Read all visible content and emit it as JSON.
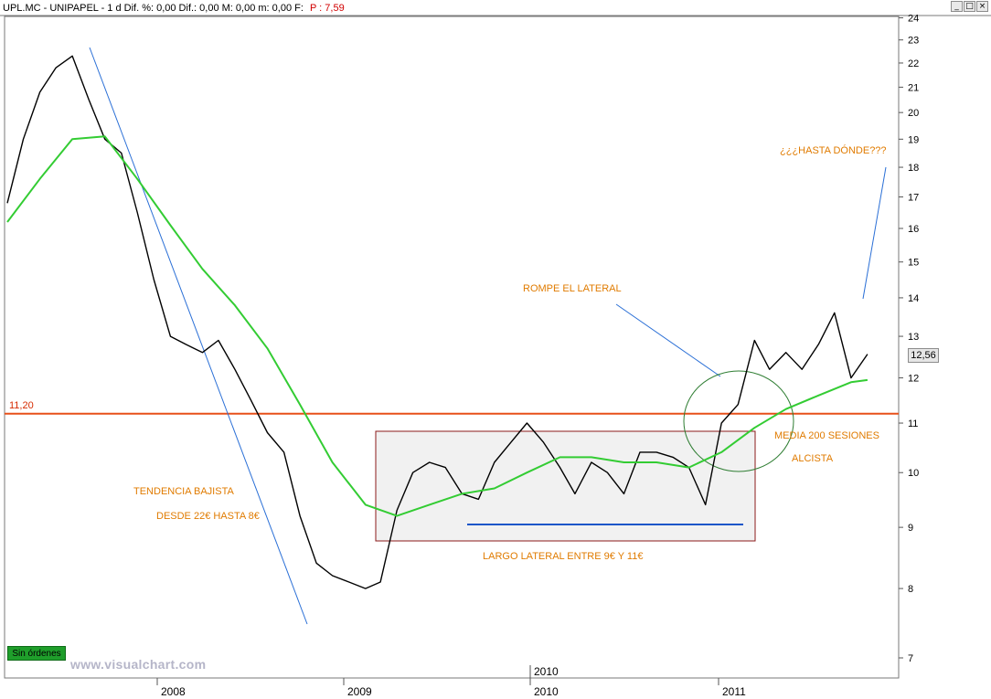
{
  "header": {
    "title": "UPL.MC - UNIPAPEL - 1 d Dif. %: 0,00 Dif.: 0,00 M: 0,00 m: 0,00 F:",
    "p_value": "P : 7,59"
  },
  "window_buttons": [
    "_",
    "□",
    "×"
  ],
  "status_box": "Sin órdenes",
  "watermark": "www.visualchart.com",
  "current_price": "12,56",
  "level_label": "11,20",
  "annotations": {
    "trend_line1": "TENDENCIA BAJISTA",
    "trend_line2": "DESDE 22€ HASTA 8€",
    "lateral": "LARGO LATERAL ENTRE 9€ Y 11€",
    "breakout": "ROMPE EL LATERAL",
    "ma_line1": "MEDIA 200 SESIONES",
    "ma_line2": "ALCISTA",
    "question": "¿¿¿HASTA DÓNDE???"
  },
  "colors": {
    "price": "#000000",
    "ma200": "#33cc33",
    "level": "#e8501a",
    "support": "#1a56c8",
    "trend": "#2a6fd6",
    "annotation": "#e07b00",
    "box": "#8b1a1a"
  },
  "chart_data": {
    "type": "line",
    "title": "",
    "scale": "log",
    "ylim": [
      7,
      24
    ],
    "y_ticks": [
      7,
      8,
      9,
      10,
      11,
      12,
      13,
      14,
      15,
      16,
      17,
      18,
      19,
      20,
      21,
      22,
      23,
      24
    ],
    "x_labels": [
      "2008",
      "2009",
      "2010",
      "2011"
    ],
    "x_label_extra": "2010",
    "horizontal_level": 11.2,
    "support_level": 9.05,
    "series": [
      {
        "style": "price",
        "x": [
          "2007-04",
          "2007-05",
          "2007-06",
          "2007-07",
          "2007-08",
          "2007-09",
          "2007-10",
          "2007-11",
          "2007-12",
          "2008-01",
          "2008-02",
          "2008-03",
          "2008-04",
          "2008-05",
          "2008-06",
          "2008-07",
          "2008-08",
          "2008-09",
          "2008-10",
          "2008-11",
          "2008-12",
          "2009-01",
          "2009-02",
          "2009-03",
          "2009-04",
          "2009-05",
          "2009-06",
          "2009-07",
          "2009-08",
          "2009-09",
          "2009-10",
          "2009-11",
          "2009-12",
          "2010-01",
          "2010-02",
          "2010-03",
          "2010-04",
          "2010-05",
          "2010-06",
          "2010-07",
          "2010-08",
          "2010-09",
          "2010-10",
          "2010-11",
          "2010-12",
          "2011-01",
          "2011-02",
          "2011-03",
          "2011-04",
          "2011-05",
          "2011-06",
          "2011-07",
          "2011-08",
          "2011-09"
        ],
        "values": [
          16.8,
          19.0,
          20.8,
          21.8,
          22.3,
          20.5,
          19.0,
          18.5,
          16.5,
          14.5,
          13.0,
          12.8,
          12.6,
          12.9,
          12.2,
          11.5,
          10.8,
          10.4,
          9.2,
          8.4,
          8.2,
          8.1,
          8.0,
          8.1,
          9.3,
          10.0,
          10.2,
          10.1,
          9.6,
          9.5,
          10.2,
          10.6,
          11.0,
          10.6,
          10.1,
          9.6,
          10.2,
          10.0,
          9.6,
          10.4,
          10.4,
          10.3,
          10.1,
          9.4,
          11.0,
          11.4,
          12.9,
          12.2,
          12.6,
          12.2,
          12.8,
          13.6,
          12.0,
          12.56
        ]
      },
      {
        "style": "ma200",
        "x": [
          "2007-04",
          "2007-06",
          "2007-08",
          "2007-10",
          "2007-12",
          "2008-02",
          "2008-04",
          "2008-06",
          "2008-08",
          "2008-10",
          "2008-12",
          "2009-02",
          "2009-04",
          "2009-06",
          "2009-08",
          "2009-10",
          "2009-12",
          "2010-02",
          "2010-04",
          "2010-06",
          "2010-08",
          "2010-10",
          "2010-12",
          "2011-02",
          "2011-04",
          "2011-06",
          "2011-08",
          "2011-09"
        ],
        "values": [
          16.2,
          17.6,
          19.0,
          19.1,
          17.6,
          16.1,
          14.8,
          13.8,
          12.7,
          11.4,
          10.2,
          9.4,
          9.2,
          9.4,
          9.6,
          9.7,
          10.0,
          10.3,
          10.3,
          10.2,
          10.2,
          10.1,
          10.4,
          10.9,
          11.3,
          11.6,
          11.9,
          11.95
        ]
      }
    ]
  }
}
